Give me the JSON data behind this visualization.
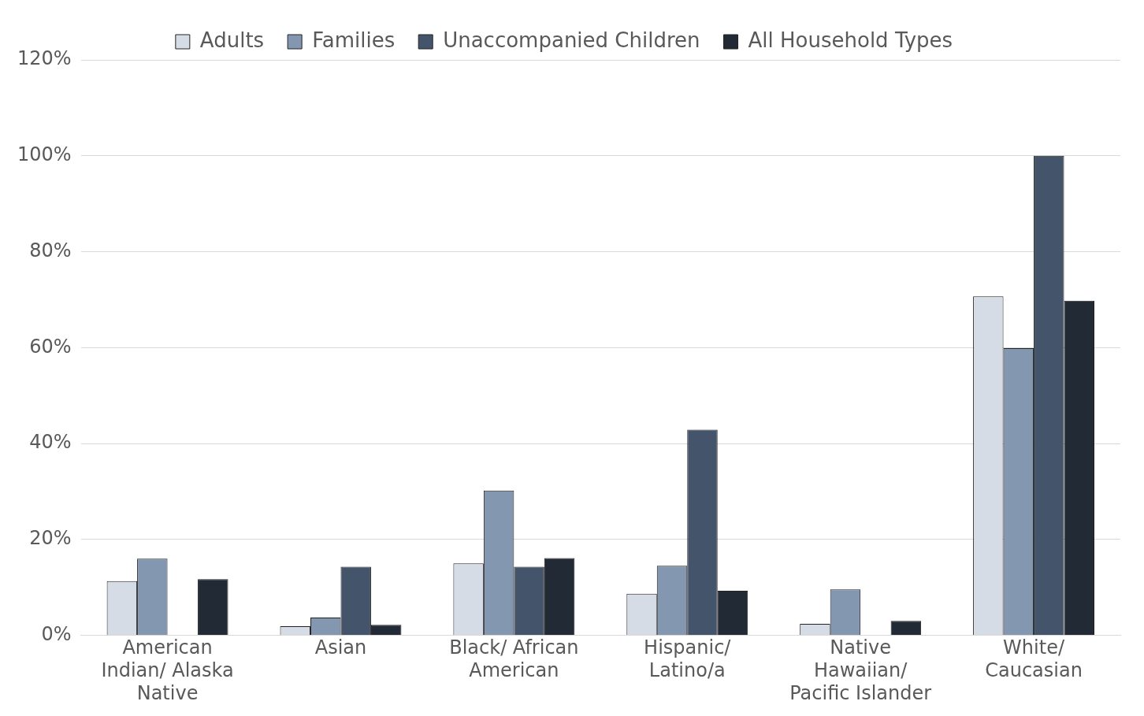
{
  "chart_data": {
    "type": "bar",
    "categories": [
      "American Indian/ Alaska Native",
      "Asian",
      "Black/ African American",
      "Hispanic/ Latino/a",
      "Native Hawaiian/ Pacific Islander",
      "White/ Caucasian"
    ],
    "series": [
      {
        "name": "Adults",
        "color": "#d6dce5",
        "values": [
          11.3,
          1.9,
          15.0,
          8.7,
          2.4,
          70.7
        ]
      },
      {
        "name": "Families",
        "color": "#8497b0",
        "values": [
          16.0,
          3.7,
          30.2,
          14.5,
          9.6,
          59.9
        ]
      },
      {
        "name": "Unaccompanied Children",
        "color": "#44546a",
        "values": [
          0,
          14.3,
          14.3,
          42.9,
          0,
          100
        ]
      },
      {
        "name": "All Household Types",
        "color": "#222a35",
        "values": [
          11.7,
          2.2,
          16.1,
          9.3,
          3.0,
          69.8
        ]
      }
    ],
    "ylim": [
      0,
      120
    ],
    "yticks": [
      {
        "value": 0,
        "label": "0%"
      },
      {
        "value": 20,
        "label": "20%"
      },
      {
        "value": 40,
        "label": "40%"
      },
      {
        "value": 60,
        "label": "60%"
      },
      {
        "value": 80,
        "label": "80%"
      },
      {
        "value": 100,
        "label": "100%"
      },
      {
        "value": 120,
        "label": "120%"
      }
    ],
    "grid": "y",
    "legend": "top"
  }
}
